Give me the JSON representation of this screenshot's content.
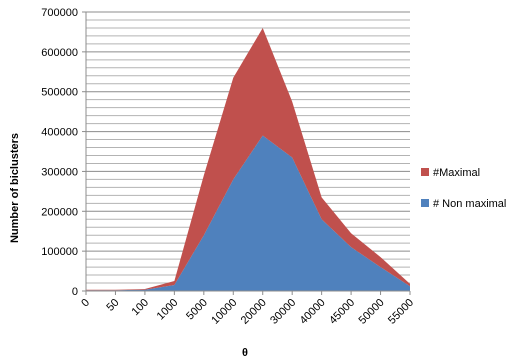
{
  "chart_data": {
    "type": "area",
    "stacked": true,
    "categories": [
      "0",
      "50",
      "100",
      "1000",
      "5000",
      "10000",
      "20000",
      "30000",
      "40000",
      "45000",
      "50000",
      "55000"
    ],
    "series": [
      {
        "name": "# Non maximal",
        "color": "#4f81bd",
        "values": [
          2000,
          2000,
          3000,
          15000,
          140000,
          280000,
          390000,
          335000,
          180000,
          110000,
          60000,
          12000
        ]
      },
      {
        "name": "#Maximal",
        "color": "#c0504d",
        "values": [
          1000,
          1000,
          2000,
          10000,
          150000,
          255000,
          270000,
          140000,
          55000,
          35000,
          25000,
          6000
        ]
      }
    ],
    "xlabel": "θ",
    "ylabel": "Number of biclusters",
    "ylim": [
      0,
      700000
    ],
    "yticks": [
      0,
      100000,
      200000,
      300000,
      400000,
      500000,
      600000,
      700000
    ],
    "ytick_labels": [
      "0",
      "100000",
      "200000",
      "300000",
      "400000",
      "500000",
      "600000",
      "700000"
    ],
    "grid": true,
    "minor_grid": true,
    "legend_position": "right",
    "legend_order": [
      "#Maximal",
      "# Non maximal"
    ]
  }
}
